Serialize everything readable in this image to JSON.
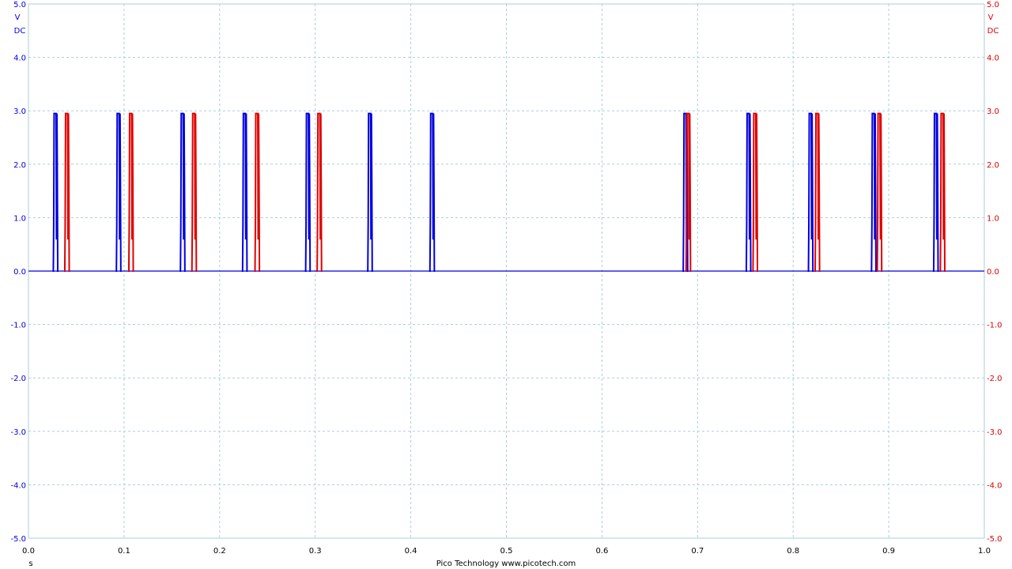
{
  "chart_data": {
    "type": "line",
    "footer": "Pico Technology  www.picotech.com",
    "xlabel": "s",
    "xlim": [
      0.0,
      1.0
    ],
    "x_ticks": [
      "0.0",
      "0.1",
      "0.2",
      "0.3",
      "0.4",
      "0.5",
      "0.6",
      "0.7",
      "0.8",
      "0.9",
      "1.0"
    ],
    "grid": true,
    "left_axis": {
      "unit": "V",
      "coupling": "DC",
      "color": "#0000e0",
      "ylim": [
        -5.0,
        5.0
      ],
      "ticks": [
        "5.0",
        "4.0",
        "3.0",
        "2.0",
        "1.0",
        "0.0",
        "-1.0",
        "-2.0",
        "-3.0",
        "-4.0",
        "-5.0"
      ]
    },
    "right_axis": {
      "unit": "V",
      "coupling": "DC",
      "color": "#e00000",
      "ylim": [
        -5.0,
        5.0
      ],
      "ticks": [
        "5.0",
        "4.0",
        "3.0",
        "2.0",
        "1.0",
        "0.0",
        "-1.0",
        "-2.0",
        "-3.0",
        "-4.0",
        "-5.0"
      ]
    },
    "series": [
      {
        "color": "#0000e0",
        "axis": "left",
        "low_level": 0.0,
        "high_level": 2.95,
        "pulse_starts": [
          0.026,
          0.092,
          0.159,
          0.224,
          0.29,
          0.355,
          0.42,
          0.685,
          0.751,
          0.816,
          0.882,
          0.947
        ]
      },
      {
        "color": "#e00000",
        "axis": "right",
        "low_level": 0.0,
        "high_level": 2.95,
        "pulse_starts": [
          0.038,
          0.105,
          0.171,
          0.237,
          0.302,
          0.688,
          0.758,
          0.823,
          0.888,
          0.954
        ]
      }
    ]
  }
}
